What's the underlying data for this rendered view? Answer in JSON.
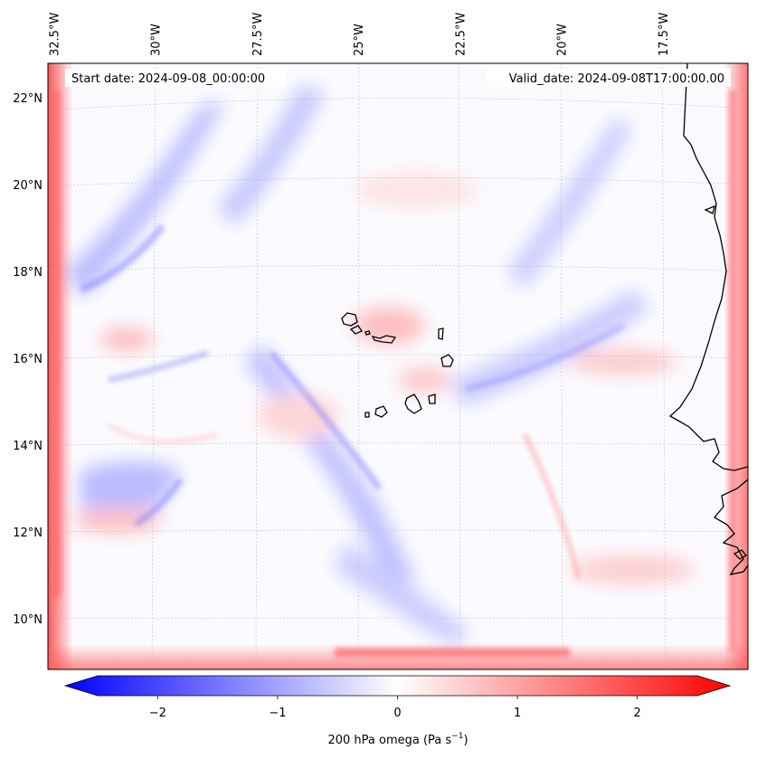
{
  "map": {
    "lon_ticks": [
      {
        "label": "32.5°W",
        "lon": -32.5
      },
      {
        "label": "30°W",
        "lon": -30.0
      },
      {
        "label": "27.5°W",
        "lon": -27.5
      },
      {
        "label": "25°W",
        "lon": -25.0
      },
      {
        "label": "22.5°W",
        "lon": -22.5
      },
      {
        "label": "20°W",
        "lon": -20.0
      },
      {
        "label": "17.5°W",
        "lon": -17.5
      }
    ],
    "lat_ticks": [
      {
        "label": "22°N",
        "lat": 22
      },
      {
        "label": "20°N",
        "lat": 20
      },
      {
        "label": "18°N",
        "lat": 18
      },
      {
        "label": "16°N",
        "lat": 16
      },
      {
        "label": "14°N",
        "lat": 14
      },
      {
        "label": "12°N",
        "lat": 12
      },
      {
        "label": "10°N",
        "lat": 10
      }
    ],
    "start_date": "Start date: 2024-09-08_00:00:00",
    "valid_date": "Valid_date: 2024-09-08T17:00:00.00"
  },
  "colorbar": {
    "ticks": [
      {
        "label": "−2",
        "value": -2
      },
      {
        "label": "−1",
        "value": -1
      },
      {
        "label": "0",
        "value": 0
      },
      {
        "label": "1",
        "value": 1
      },
      {
        "label": "2",
        "value": 2
      }
    ],
    "range": [
      -2.5,
      2.5
    ],
    "label_main": "200 hPa omega (Pa s",
    "label_exp": "−1",
    "label_close": ")",
    "colors": {
      "negative": "#0000ff",
      "zero": "#ffffff",
      "positive": "#ff0000"
    }
  },
  "colors": {
    "coastline": "#000000",
    "gridline": "#b0b0b0"
  }
}
